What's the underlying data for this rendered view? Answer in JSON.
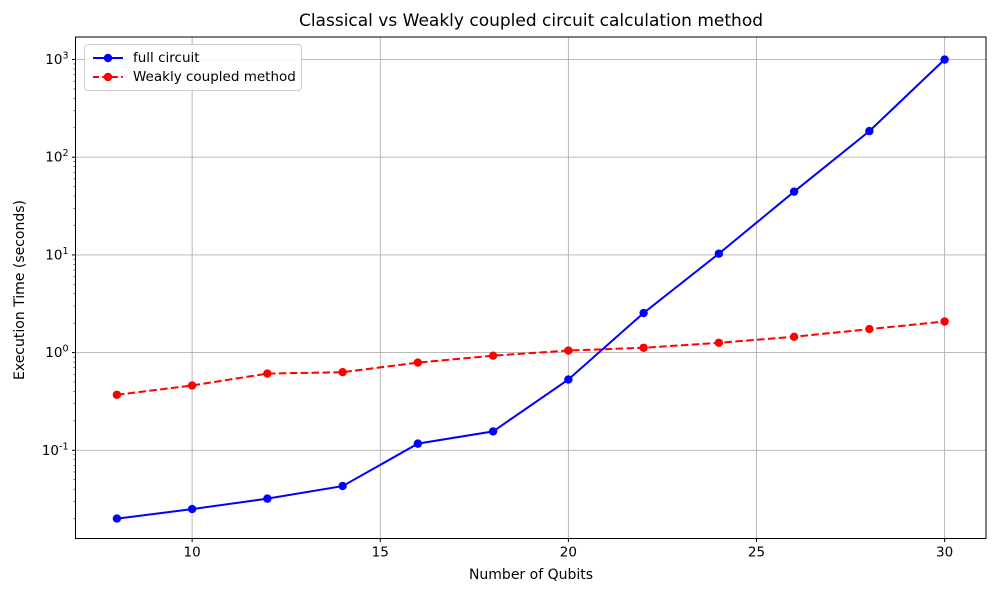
{
  "chart_data": {
    "type": "line",
    "title": "Classical vs Weakly coupled circuit calculation method",
    "xlabel": "Number of Qubits",
    "ylabel": "Execution Time (seconds)",
    "yscale": "log",
    "grid": true,
    "legend_position": "upper left",
    "x": [
      8,
      10,
      12,
      14,
      16,
      18,
      20,
      22,
      24,
      26,
      28,
      30
    ],
    "series": [
      {
        "name": "full circuit",
        "color": "#0000ff",
        "linestyle": "solid",
        "marker": "circle",
        "values": [
          0.02,
          0.025,
          0.032,
          0.043,
          0.117,
          0.156,
          0.53,
          2.54,
          10.3,
          44.4,
          185,
          1000
        ]
      },
      {
        "name": "Weakly coupled method",
        "color": "#ff0000",
        "linestyle": "dashed",
        "marker": "circle",
        "values": [
          0.37,
          0.46,
          0.61,
          0.63,
          0.79,
          0.93,
          1.05,
          1.12,
          1.26,
          1.45,
          1.74,
          2.08
        ]
      }
    ],
    "xlim": [
      6.9,
      31.1
    ],
    "ylim": [
      0.0125,
      1700
    ],
    "xticks": [
      10,
      15,
      20,
      25,
      30
    ],
    "yticks": [
      0.1,
      1,
      10,
      100,
      1000
    ],
    "colors": {
      "grid": "#b0b0b0",
      "spine": "#000000",
      "text": "#000000",
      "legend_border": "#cccccc"
    }
  }
}
